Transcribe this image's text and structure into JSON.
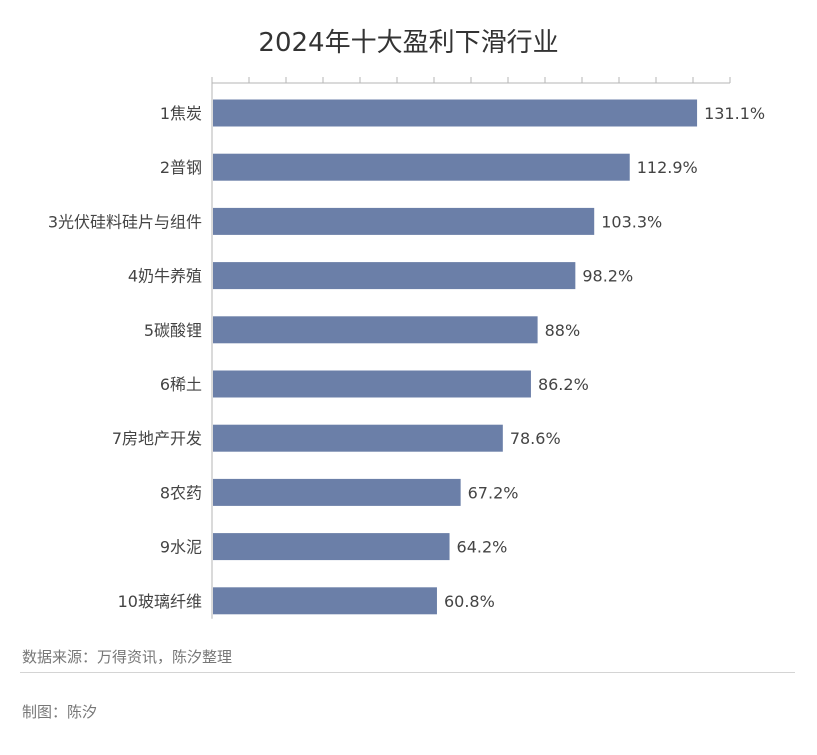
{
  "chart_data": {
    "type": "bar",
    "orientation": "horizontal",
    "title": "2024年十大盈利下滑行业",
    "categories": [
      "1焦炭",
      "2普钢",
      "3光伏硅料硅片与组件",
      "4奶牛养殖",
      "5碳酸锂",
      "6稀土",
      "7房地产开发",
      "8农药",
      "9水泥",
      "10玻璃纤维"
    ],
    "values": [
      131.1,
      112.9,
      103.3,
      98.2,
      88,
      86.2,
      78.6,
      67.2,
      64.2,
      60.8
    ],
    "value_labels": [
      "131.1%",
      "112.9%",
      "103.3%",
      "98.2%",
      "88%",
      "86.2%",
      "78.6%",
      "67.2%",
      "64.2%",
      "60.8%"
    ],
    "xlim": [
      0,
      140
    ],
    "tick_count": 14,
    "xlabel": "",
    "ylabel": "",
    "grid": false,
    "legend": "none",
    "bar_color": "#6b7fa8"
  },
  "footer": {
    "source": "数据来源：万得资讯，陈汐整理",
    "author": "制图：陈汐"
  }
}
